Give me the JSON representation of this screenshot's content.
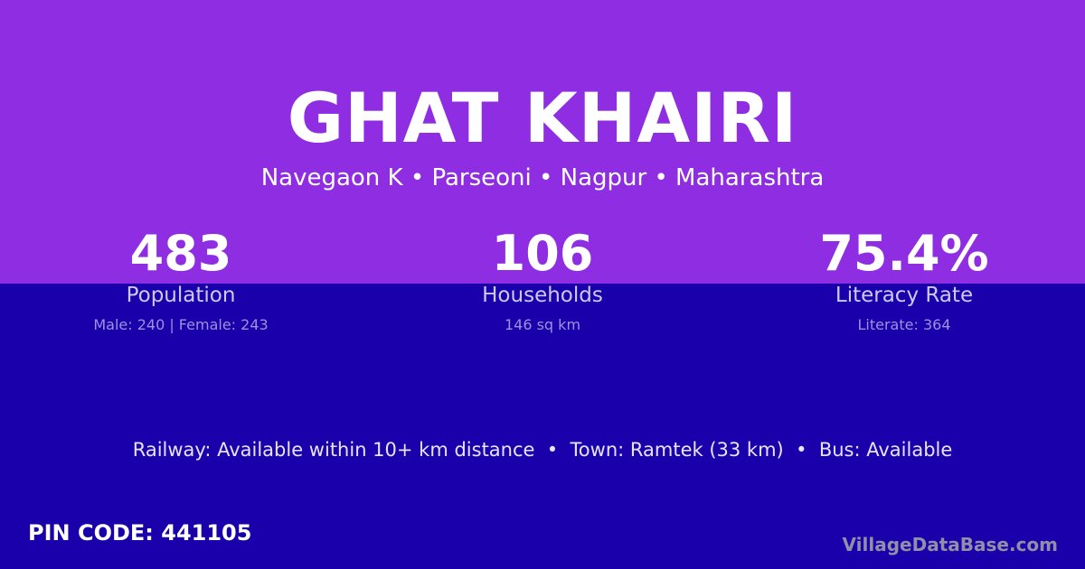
{
  "title": "GHAT KHAIRI",
  "location": "Navegaon K • Parseoni • Nagpur • Maharashtra",
  "stats": [
    {
      "value": "483",
      "label": "Population",
      "detail": "Male: 240 | Female: 243"
    },
    {
      "value": "106",
      "label": "Households",
      "detail": "146 sq km"
    },
    {
      "value": "75.4%",
      "label": "Literacy Rate",
      "detail": "Literate: 364"
    }
  ],
  "info": "Railway: Available within 10+ km distance  •  Town: Ramtek (33 km)  •  Bus: Available",
  "pin": "PIN CODE: 441105",
  "brand": "VillageDataBase.com",
  "colors": {
    "top": "#8e2de2",
    "bottom": "#1a00aa"
  }
}
